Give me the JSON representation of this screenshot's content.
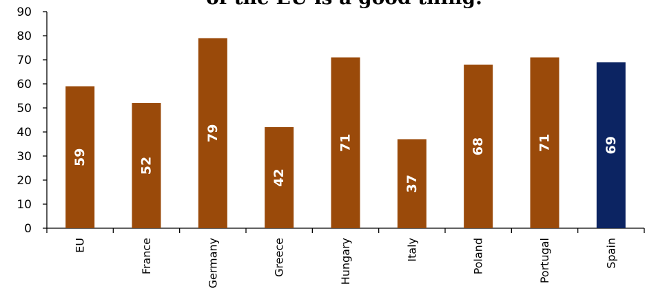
{
  "chart_data": {
    "type": "bar",
    "title": "of the EU is a good thing.",
    "xlabel": "",
    "ylabel": "",
    "categories": [
      "EU",
      "France",
      "Germany",
      "Greece",
      "Hungary",
      "Italy",
      "Poland",
      "Portugal",
      "Spain"
    ],
    "values": [
      59,
      52,
      79,
      42,
      71,
      37,
      68,
      71,
      69
    ],
    "data_labels": [
      "59",
      "52",
      "79",
      "42",
      "71",
      "37",
      "68",
      "71",
      "69"
    ],
    "ylim": [
      0,
      90
    ],
    "yticks": [
      0,
      10,
      20,
      30,
      40,
      50,
      60,
      70,
      80,
      90
    ],
    "ytick_labels": [
      "0",
      "10",
      "20",
      "30",
      "40",
      "50",
      "60",
      "70",
      "80",
      "90"
    ],
    "grid": false,
    "legend": "none",
    "colors": {
      "default_bar": "#9A4A0A",
      "highlight_bar": "#0C2462",
      "data_label": "#ffffff",
      "axis": "#000000"
    },
    "highlight_index": 8
  }
}
